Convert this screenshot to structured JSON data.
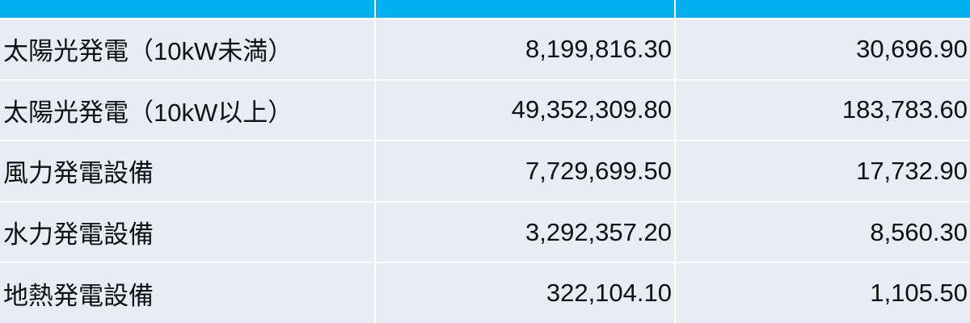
{
  "table": {
    "rows": [
      [
        "太陽光発電（10kW未満）",
        "8,199,816.30",
        "30,696.90"
      ],
      [
        "太陽光発電（10kW以上）",
        "49,352,309.80",
        "183,783.60"
      ],
      [
        "風力発電設備",
        "7,729,699.50",
        "17,732.90"
      ],
      [
        "水力発電設備",
        "3,292,357.20",
        "8,560.30"
      ],
      [
        "地熱発電設備",
        "322,104.10",
        "1,105.50"
      ]
    ]
  }
}
